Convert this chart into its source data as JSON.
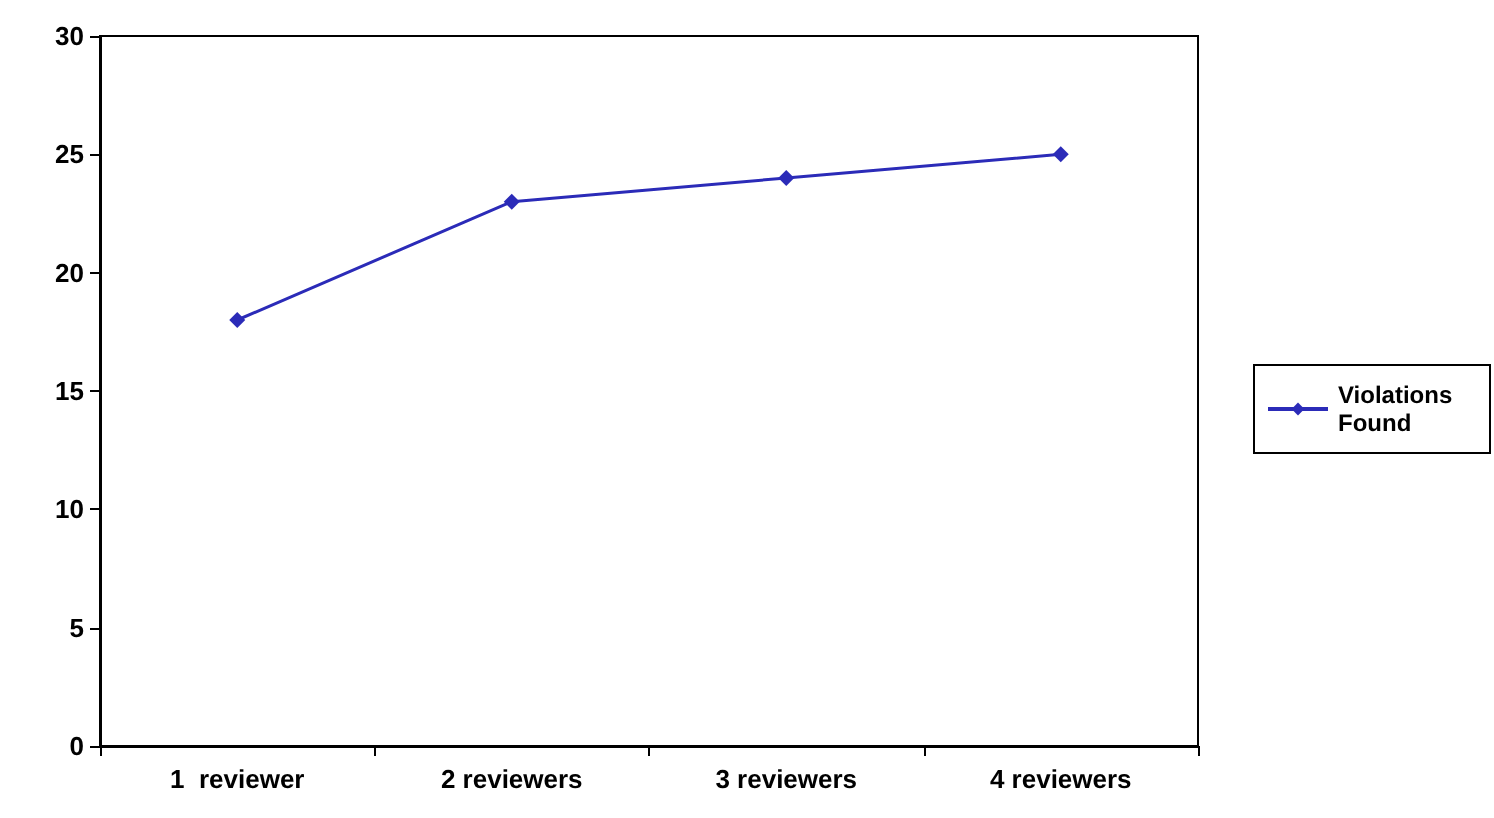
{
  "chart_data": {
    "type": "line",
    "categories": [
      "1  reviewer",
      "2 reviewers",
      "3 reviewers",
      "4 reviewers"
    ],
    "series": [
      {
        "name": "Violations Found",
        "color": "#2b2bb8",
        "values": [
          18,
          23,
          24,
          25
        ]
      }
    ],
    "ylim": [
      0,
      30
    ],
    "yticks": [
      0,
      5,
      10,
      15,
      20,
      25,
      30
    ],
    "grid": false,
    "legend": "right",
    "marker": "diamond",
    "line_style": "solid"
  }
}
